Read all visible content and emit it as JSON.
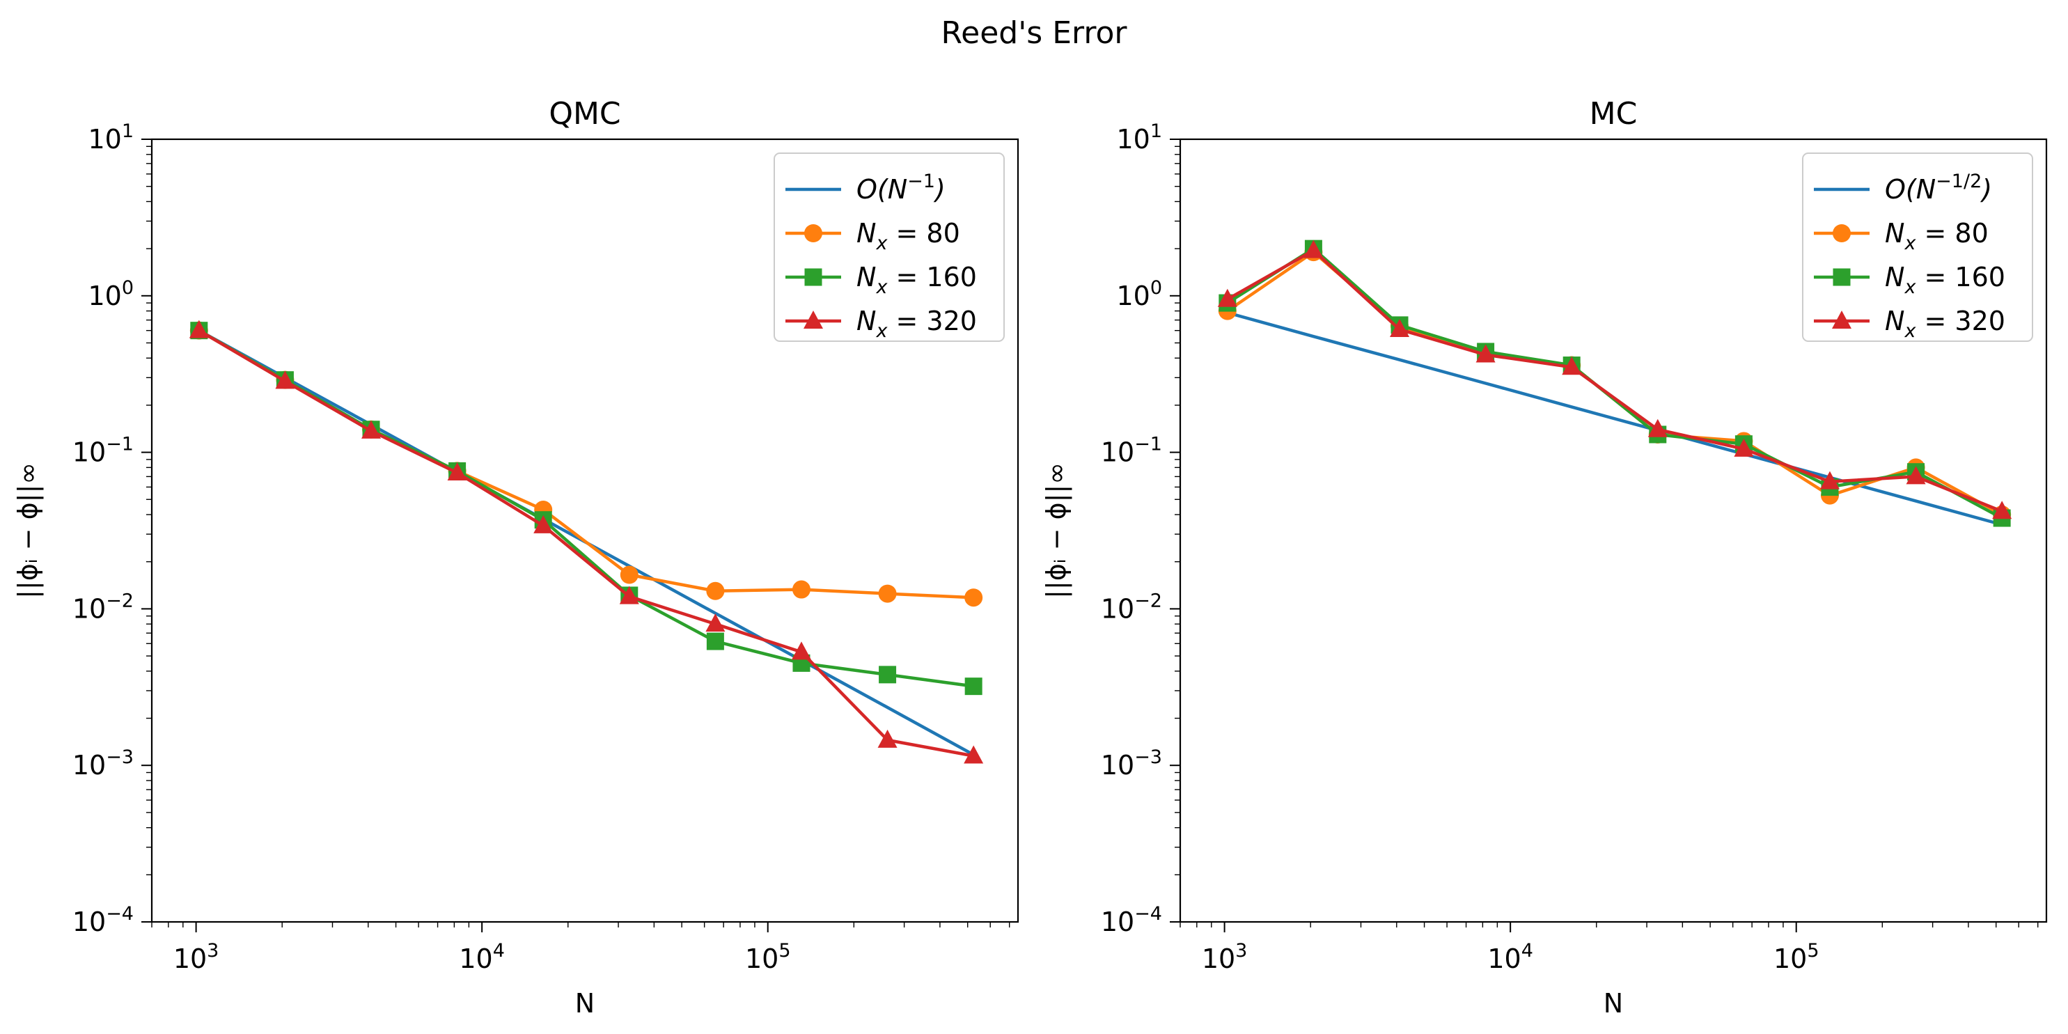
{
  "figure_title": "Reed's Error",
  "colors": {
    "blue": "#1f77b4",
    "orange": "#ff7f0e",
    "green": "#2ca02c",
    "red": "#d62728"
  },
  "chart_data": [
    {
      "type": "line",
      "title": "QMC",
      "xlabel": "N",
      "ylabel": "||ϕᵢ − ϕ||∞",
      "xscale": "log",
      "yscale": "log",
      "xlim": [
        700,
        750000
      ],
      "ylim": [
        0.0001,
        10
      ],
      "xticks": [
        1000,
        10000,
        100000
      ],
      "xtick_labels": [
        {
          "base": "10",
          "exp": "3"
        },
        {
          "base": "10",
          "exp": "4"
        },
        {
          "base": "10",
          "exp": "5"
        }
      ],
      "yticks": [
        0.0001,
        0.001,
        0.01,
        0.1,
        1,
        10
      ],
      "ytick_labels": [
        {
          "base": "10",
          "exp": "−4"
        },
        {
          "base": "10",
          "exp": "−3"
        },
        {
          "base": "10",
          "exp": "−2"
        },
        {
          "base": "10",
          "exp": "−1"
        },
        {
          "base": "10",
          "exp": "0"
        },
        {
          "base": "10",
          "exp": "1"
        }
      ],
      "grid": false,
      "legend_position": "upper right",
      "x": [
        1024,
        2048,
        4096,
        8192,
        16384,
        32768,
        65536,
        131072,
        262144,
        524288
      ],
      "series": [
        {
          "label_main": "O(N",
          "label_sup": "−1",
          "label_tail": ")",
          "color": "#1f77b4",
          "marker": "none",
          "values": [
            0.6,
            0.3,
            0.15,
            0.075,
            0.0375,
            0.01875,
            0.009375,
            0.0046875,
            0.00234375,
            0.00117
          ]
        },
        {
          "label_main": "N",
          "label_sub": "x",
          "label_tail": " = 80",
          "color": "#ff7f0e",
          "marker": "circle",
          "values": [
            0.6,
            0.29,
            0.14,
            0.076,
            0.043,
            0.0165,
            0.013,
            0.0133,
            0.0125,
            0.0118
          ]
        },
        {
          "label_main": "N",
          "label_sub": "x",
          "label_tail": " = 160",
          "color": "#2ca02c",
          "marker": "square",
          "values": [
            0.6,
            0.29,
            0.14,
            0.076,
            0.037,
            0.0122,
            0.0062,
            0.0045,
            0.0038,
            0.0032
          ]
        },
        {
          "label_main": "N",
          "label_sub": "x",
          "label_tail": " = 320",
          "color": "#d62728",
          "marker": "triangle",
          "values": [
            0.6,
            0.285,
            0.137,
            0.074,
            0.034,
            0.012,
            0.008,
            0.0053,
            0.00145,
            0.00115
          ]
        }
      ]
    },
    {
      "type": "line",
      "title": "MC",
      "xlabel": "N",
      "ylabel": "||ϕᵢ − ϕ||∞",
      "xscale": "log",
      "yscale": "log",
      "xlim": [
        700,
        750000
      ],
      "ylim": [
        0.0001,
        10
      ],
      "xticks": [
        1000,
        10000,
        100000
      ],
      "xtick_labels": [
        {
          "base": "10",
          "exp": "3"
        },
        {
          "base": "10",
          "exp": "4"
        },
        {
          "base": "10",
          "exp": "5"
        }
      ],
      "yticks": [
        0.0001,
        0.001,
        0.01,
        0.1,
        1,
        10
      ],
      "ytick_labels": [
        {
          "base": "10",
          "exp": "−4"
        },
        {
          "base": "10",
          "exp": "−3"
        },
        {
          "base": "10",
          "exp": "−2"
        },
        {
          "base": "10",
          "exp": "−1"
        },
        {
          "base": "10",
          "exp": "0"
        },
        {
          "base": "10",
          "exp": "1"
        }
      ],
      "grid": false,
      "legend_position": "upper right",
      "x": [
        1024,
        2048,
        4096,
        8192,
        16384,
        32768,
        65536,
        131072,
        262144,
        524288
      ],
      "series": [
        {
          "label_main": "O(N",
          "label_sup": "−1/2",
          "label_tail": ")",
          "color": "#1f77b4",
          "marker": "none",
          "values": [
            0.78,
            0.55,
            0.39,
            0.276,
            0.195,
            0.138,
            0.0975,
            0.069,
            0.0488,
            0.0345
          ]
        },
        {
          "label_main": "N",
          "label_sub": "x",
          "label_tail": " = 80",
          "color": "#ff7f0e",
          "marker": "circle",
          "values": [
            0.8,
            1.9,
            0.64,
            0.43,
            0.36,
            0.13,
            0.118,
            0.053,
            0.08,
            0.04
          ]
        },
        {
          "label_main": "N",
          "label_sub": "x",
          "label_tail": " = 160",
          "color": "#2ca02c",
          "marker": "square",
          "values": [
            0.9,
            2.0,
            0.65,
            0.44,
            0.36,
            0.13,
            0.113,
            0.06,
            0.075,
            0.038
          ]
        },
        {
          "label_main": "N",
          "label_sub": "x",
          "label_tail": " = 320",
          "color": "#d62728",
          "marker": "triangle",
          "values": [
            0.95,
            1.95,
            0.61,
            0.42,
            0.35,
            0.14,
            0.105,
            0.065,
            0.07,
            0.042
          ]
        }
      ]
    }
  ]
}
